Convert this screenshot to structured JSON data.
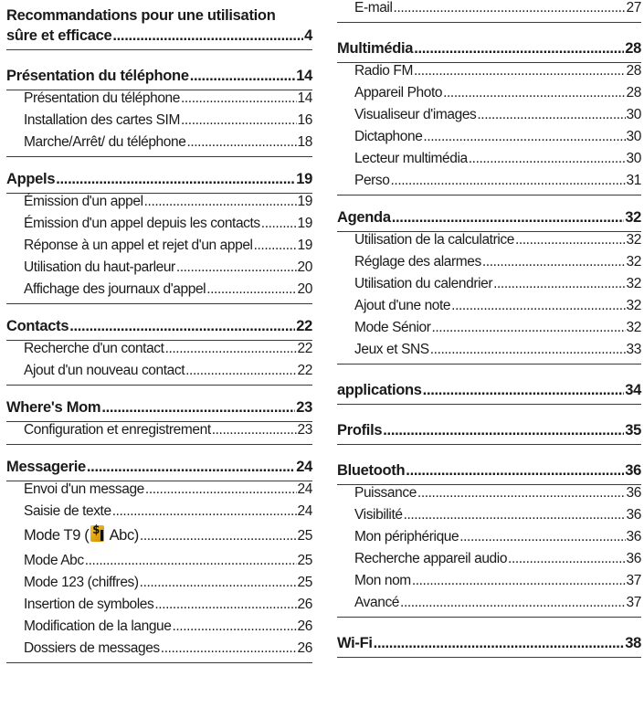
{
  "left": [
    {
      "title": "Recommandations pour une utilisation",
      "title2": "sûre et efficace",
      "page": "4",
      "items": []
    },
    {
      "title": "Présentation du téléphone",
      "page": "14",
      "items": [
        {
          "label": "Présentation du téléphone",
          "page": "14"
        },
        {
          "label": "Installation des cartes SIM",
          "page": "16"
        },
        {
          "label": "Marche/Arrêt/ du téléphone",
          "page": "18"
        }
      ]
    },
    {
      "title": "Appels",
      "page": "19",
      "items": [
        {
          "label": "Émission d'un appel",
          "page": "19"
        },
        {
          "label": "Émission d'un appel depuis les contacts",
          "page": "19"
        },
        {
          "label": "Réponse à un appel et rejet d'un appel",
          "page": "19"
        },
        {
          "label": "Utilisation du haut-parleur",
          "page": "20"
        },
        {
          "label": "Affichage des journaux d'appel",
          "page": "20"
        }
      ]
    },
    {
      "title": "Contacts",
      "page": "22",
      "items": [
        {
          "label": "Recherche d'un contact",
          "page": "22"
        },
        {
          "label": "Ajout d'un nouveau contact",
          "page": "22"
        }
      ]
    },
    {
      "title": "Where's Mom",
      "page": "23",
      "items": [
        {
          "label": "Configuration et enregistrement",
          "page": "23"
        }
      ]
    },
    {
      "title": "Messagerie",
      "page": "24",
      "items": [
        {
          "label": "Envoi d'un message",
          "page": "24"
        },
        {
          "label": "Saisie de texte",
          "page": "24"
        },
        {
          "label": "Mode T9 (",
          "label_after": " Abc)",
          "icon": "t9-input-icon",
          "page": "25"
        },
        {
          "label": "Mode Abc",
          "page": "25"
        },
        {
          "label": "Mode 123 (chiffres)",
          "page": "25"
        },
        {
          "label": "Insertion de symboles",
          "page": "26"
        },
        {
          "label": "Modification de la langue",
          "page": "26"
        },
        {
          "label": "Dossiers de messages",
          "page": "26"
        }
      ]
    }
  ],
  "right": [
    {
      "title": "",
      "page": "",
      "items": [
        {
          "label": "E-mail",
          "page": "27"
        }
      ]
    },
    {
      "title": "Multimédia",
      "page": "28",
      "items": [
        {
          "label": "Radio FM",
          "page": "28"
        },
        {
          "label": "Appareil Photo",
          "page": "28"
        },
        {
          "label": "Visualiseur d'images",
          "page": "30"
        },
        {
          "label": "Dictaphone",
          "page": "30"
        },
        {
          "label": "Lecteur multimédia",
          "page": "30"
        },
        {
          "label": "Perso",
          "page": "31"
        }
      ]
    },
    {
      "title": "Agenda",
      "page": "32",
      "items": [
        {
          "label": "Utilisation de la calculatrice",
          "page": "32"
        },
        {
          "label": "Réglage des alarmes",
          "page": "32"
        },
        {
          "label": "Utilisation du calendrier",
          "page": "32"
        },
        {
          "label": "Ajout d'une note",
          "page": "32"
        },
        {
          "label": "Mode Sénior",
          "page": "32"
        },
        {
          "label": "Jeux et SNS",
          "page": "33"
        }
      ]
    },
    {
      "title": "applications",
      "page": "34",
      "items": []
    },
    {
      "title": "Profils",
      "page": "35",
      "items": []
    },
    {
      "title": "Bluetooth",
      "page": "36",
      "items": [
        {
          "label": "Puissance",
          "page": "36"
        },
        {
          "label": "Visibilité",
          "page": "36"
        },
        {
          "label": "Mon périphérique",
          "page": "36"
        },
        {
          "label": "Recherche appareil audio",
          "page": "36"
        },
        {
          "label": "Mon nom",
          "page": "37"
        },
        {
          "label": "Avancé",
          "page": "37"
        }
      ]
    },
    {
      "title": "Wi-Fi",
      "page": "38",
      "items": []
    }
  ]
}
